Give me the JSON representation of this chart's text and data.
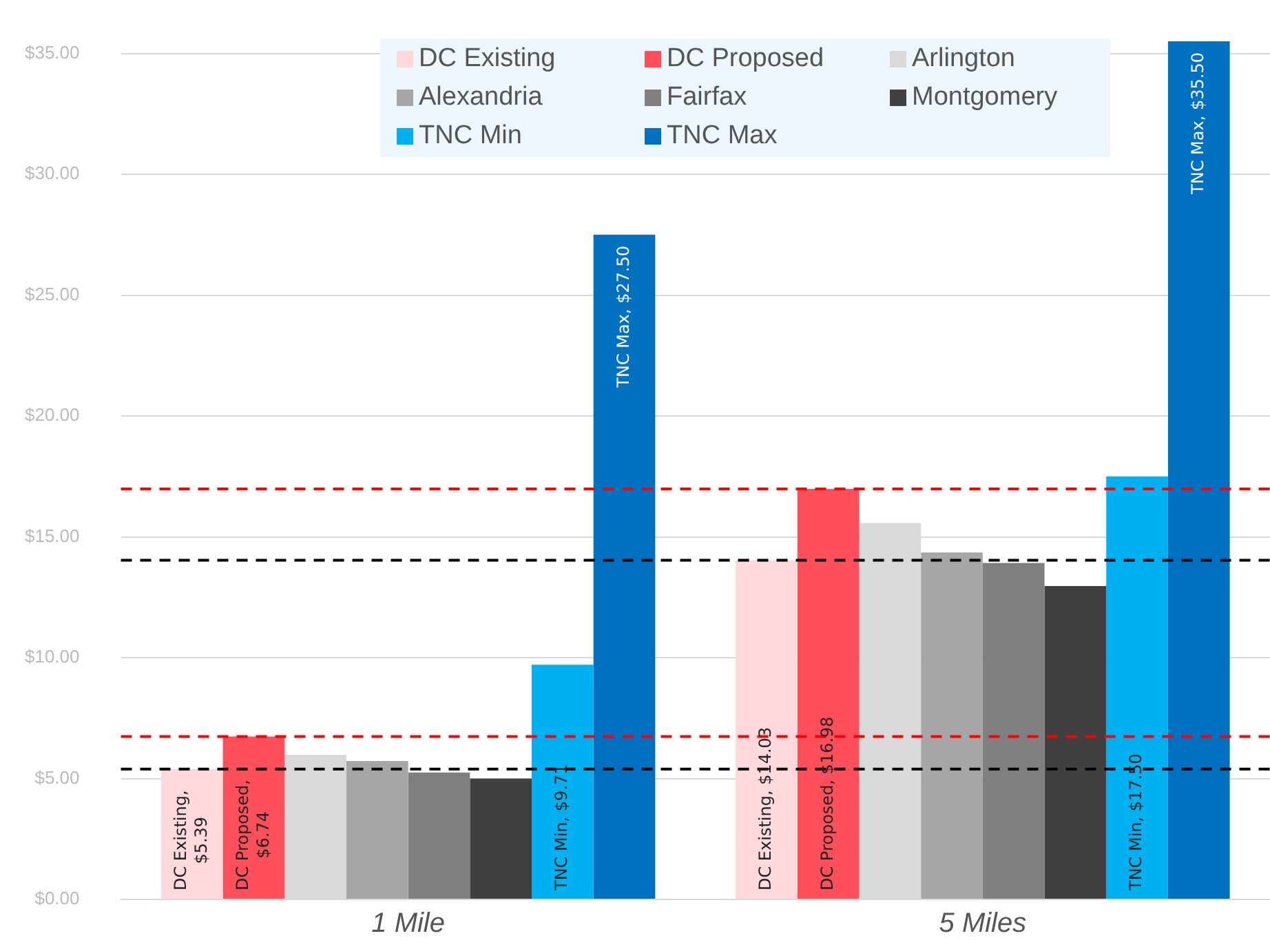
{
  "chart_data": {
    "type": "bar",
    "categories": [
      "1 Mile",
      "5 Miles"
    ],
    "series": [
      {
        "name": "DC Existing",
        "color": "#fdd9de",
        "values": [
          5.39,
          14.03
        ],
        "value_labels": [
          "DC Existing, $5.39",
          "DC Existing, $14.03"
        ]
      },
      {
        "name": "DC Proposed",
        "color": "#fe4f5a",
        "values": [
          6.74,
          16.98
        ],
        "value_labels": [
          "DC Proposed, $6.74",
          "DC Proposed, $16.98"
        ]
      },
      {
        "name": "Arlington",
        "color": "#d9d9d9",
        "values": [
          5.98,
          15.57
        ]
      },
      {
        "name": "Alexandria",
        "color": "#a6a6a6",
        "values": [
          5.73,
          14.35
        ]
      },
      {
        "name": "Fairfax",
        "color": "#7f7f7f",
        "values": [
          5.25,
          13.92
        ]
      },
      {
        "name": "Montgomery",
        "color": "#404040",
        "values": [
          5.0,
          12.96
        ]
      },
      {
        "name": "TNC Min",
        "color": "#00b0f0",
        "values": [
          9.71,
          17.5
        ],
        "value_labels": [
          "TNC Min, $9.71",
          "TNC Min, $17.50"
        ]
      },
      {
        "name": "TNC Max",
        "color": "#0070c0",
        "values": [
          27.5,
          35.5
        ],
        "value_labels": [
          "TNC Max, $27.50",
          "TNC Max, $35.50"
        ]
      }
    ],
    "ylim": [
      0,
      35.5
    ],
    "yticks": [
      {
        "value": 0,
        "label": "$0.00"
      },
      {
        "value": 5,
        "label": "$5.00"
      },
      {
        "value": 10,
        "label": "$10.00"
      },
      {
        "value": 15,
        "label": "$15.00"
      },
      {
        "value": 20,
        "label": "$20.00"
      },
      {
        "value": 25,
        "label": "$25.00"
      },
      {
        "value": 30,
        "label": "$30.00"
      },
      {
        "value": 35,
        "label": "$35.00"
      }
    ],
    "grid": "y",
    "legend": "top",
    "ref_lines": [
      {
        "axis": "y",
        "value": 6.74,
        "color": "#ff0000",
        "line_style": "dashed"
      },
      {
        "axis": "y",
        "value": 5.39,
        "color": "#000000",
        "line_style": "dashed"
      },
      {
        "axis": "y",
        "value": 16.98,
        "color": "#ff0000",
        "line_style": "dashed"
      },
      {
        "axis": "y",
        "value": 14.03,
        "color": "#000000",
        "line_style": "dashed"
      }
    ]
  }
}
